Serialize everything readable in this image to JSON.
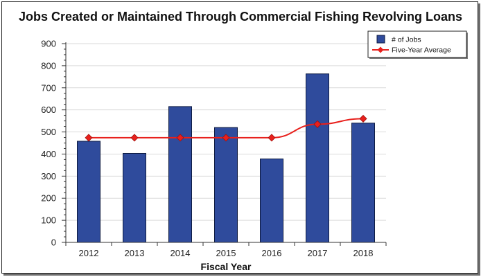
{
  "chart_data": {
    "type": "bar",
    "title": "Jobs Created or Maintained Through Commercial Fishing Revolving Loans",
    "xlabel": "Fiscal Year",
    "ylabel": "",
    "categories": [
      "2012",
      "2013",
      "2014",
      "2015",
      "2016",
      "2017",
      "2018"
    ],
    "ylim": [
      0,
      900
    ],
    "yticks": [
      0,
      100,
      200,
      300,
      400,
      500,
      600,
      700,
      800,
      900
    ],
    "grid": true,
    "legend_position": "top-right",
    "series": [
      {
        "name": "# of Jobs",
        "type": "bar",
        "color": "#2f4b9c",
        "values": [
          458,
          403,
          615,
          520,
          378,
          763,
          540
        ]
      },
      {
        "name": "Five-Year Average",
        "type": "line",
        "color": "#e8201c",
        "values": [
          474,
          474,
          474,
          474,
          474,
          535,
          560
        ]
      }
    ]
  }
}
